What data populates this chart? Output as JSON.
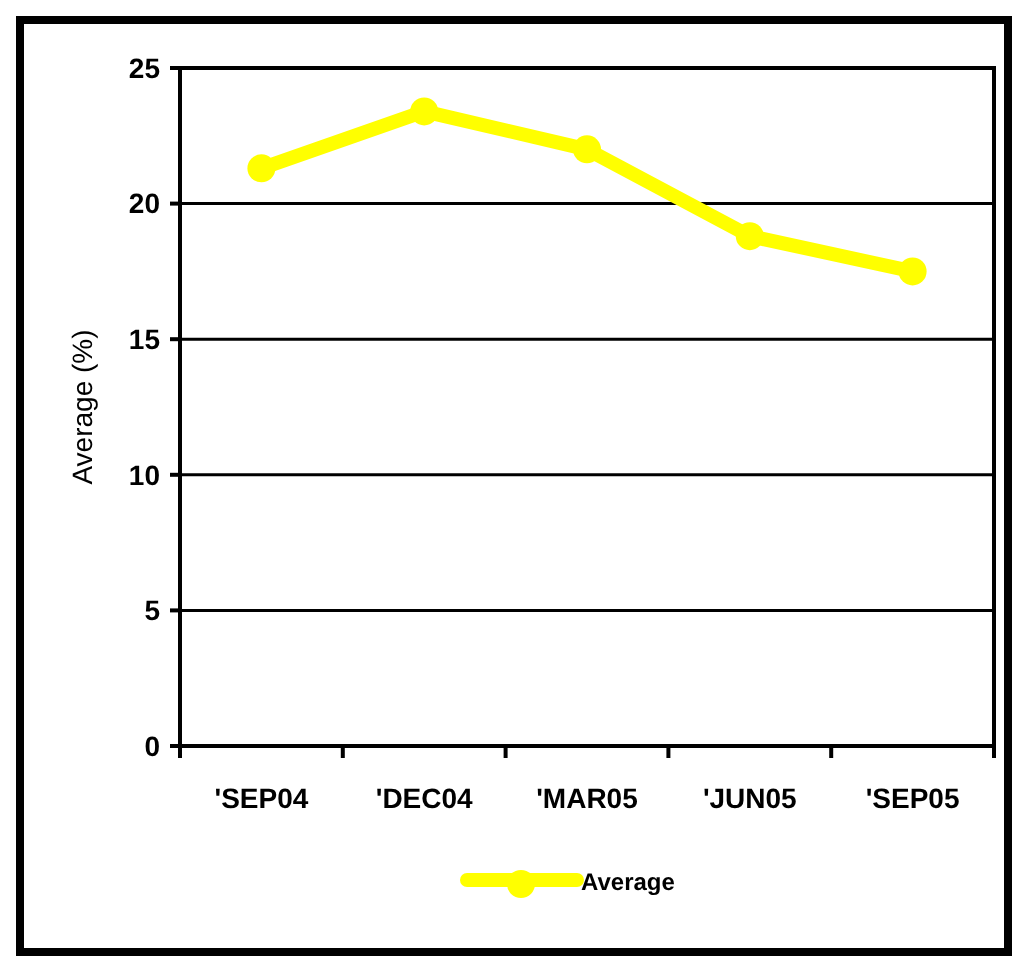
{
  "chart_data": {
    "type": "line",
    "ylabel": "Average (%)",
    "categories": [
      "'SEP04",
      "'DEC04",
      "'MAR05",
      "'JUN05",
      "'SEP05"
    ],
    "series": [
      {
        "name": "Average",
        "color": "#ffff00",
        "values": [
          21.3,
          23.4,
          22.0,
          18.8,
          17.5
        ]
      }
    ],
    "ylim": [
      0,
      25
    ],
    "yticks": [
      0,
      5,
      10,
      15,
      20,
      25
    ],
    "grid": "y",
    "legend": "bottom",
    "marker": "circle",
    "line_style": "solid"
  }
}
